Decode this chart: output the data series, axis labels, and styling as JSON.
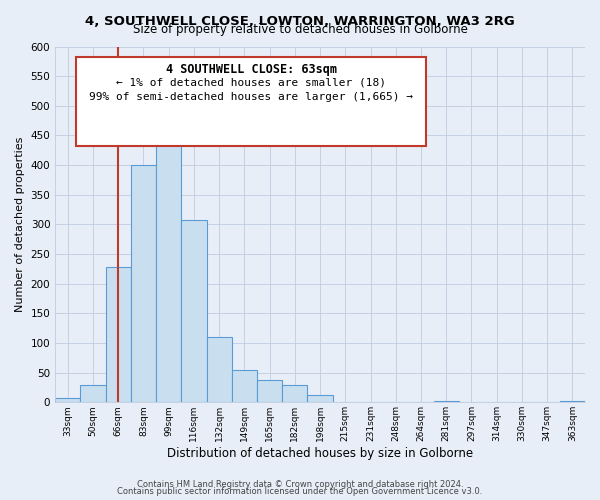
{
  "title": "4, SOUTHWELL CLOSE, LOWTON, WARRINGTON, WA3 2RG",
  "subtitle": "Size of property relative to detached houses in Golborne",
  "xlabel": "Distribution of detached houses by size in Golborne",
  "ylabel": "Number of detached properties",
  "bin_labels": [
    "33sqm",
    "50sqm",
    "66sqm",
    "83sqm",
    "99sqm",
    "116sqm",
    "132sqm",
    "149sqm",
    "165sqm",
    "182sqm",
    "198sqm",
    "215sqm",
    "231sqm",
    "248sqm",
    "264sqm",
    "281sqm",
    "297sqm",
    "314sqm",
    "330sqm",
    "347sqm",
    "363sqm"
  ],
  "bar_heights": [
    8,
    30,
    228,
    401,
    462,
    308,
    110,
    54,
    37,
    29,
    13,
    0,
    0,
    0,
    0,
    2,
    0,
    0,
    0,
    0,
    2
  ],
  "bar_color": "#c9dff0",
  "bar_edge_color": "#5b9bd5",
  "vline_x_index": 2,
  "vline_color": "#c0392b",
  "annotation_title": "4 SOUTHWELL CLOSE: 63sqm",
  "annotation_line1": "← 1% of detached houses are smaller (18)",
  "annotation_line2": "99% of semi-detached houses are larger (1,665) →",
  "annotation_box_edgecolor": "#c0392b",
  "ylim": [
    0,
    600
  ],
  "yticks": [
    0,
    50,
    100,
    150,
    200,
    250,
    300,
    350,
    400,
    450,
    500,
    550,
    600
  ],
  "footer1": "Contains HM Land Registry data © Crown copyright and database right 2024.",
  "footer2": "Contains public sector information licensed under the Open Government Licence v3.0.",
  "bg_color": "#e8eef8",
  "plot_bg_color": "#e8eef8",
  "grid_color": "#c0cce0"
}
